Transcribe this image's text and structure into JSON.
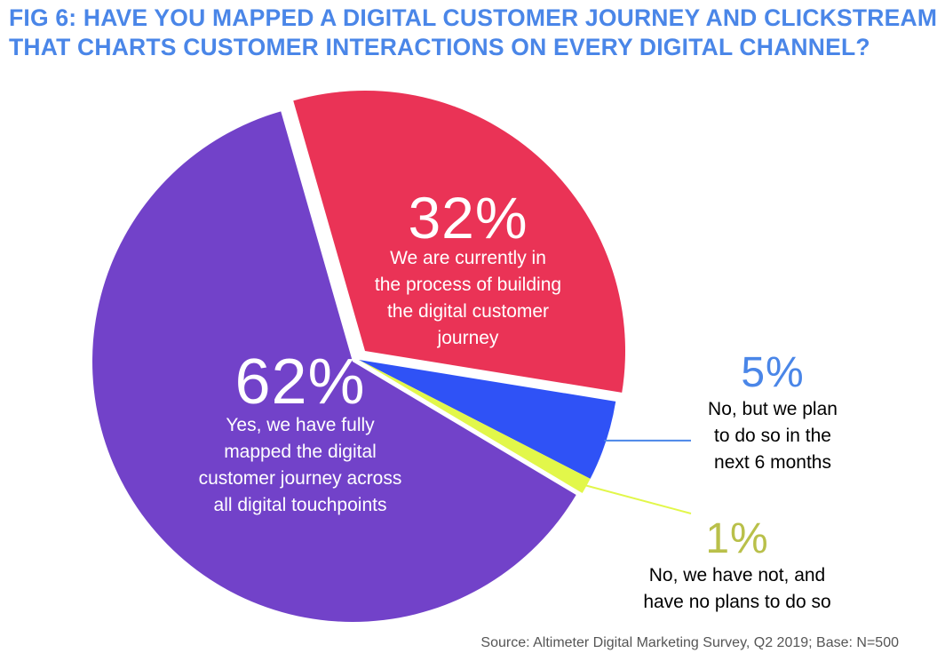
{
  "title": {
    "line1": "FIG 6: HAVE YOU MAPPED A DIGITAL CUSTOMER JOURNEY AND CLICKSTREAM",
    "line2": "THAT CHARTS CUSTOMER INTERACTIONS ON EVERY DIGITAL CHANNEL?"
  },
  "source": "Source: Altimeter Digital Marketing Survey, Q2 2019; Base: N=500",
  "colors": {
    "title": "#4a86e8",
    "yes_full": "#7242c9",
    "in_process": "#ea3356",
    "plan_6_months": "#2f52f6",
    "not_no_plans": "#e2f74a",
    "label_5pct": "#4a86e8",
    "label_1pct": "#b9c04a"
  },
  "chart_data": {
    "type": "pie",
    "title": "FIG 6: HAVE YOU MAPPED A DIGITAL CUSTOMER JOURNEY AND CLICKSTREAM THAT CHARTS CUSTOMER INTERACTIONS ON EVERY DIGITAL CHANNEL?",
    "slices": [
      {
        "value": 32,
        "pct_label": "32%",
        "label": "We are currently in the process of building the digital customer journey",
        "label_lines": [
          "We are currently in",
          "the process of building",
          "the digital customer",
          "journey"
        ],
        "color": "#ea3356"
      },
      {
        "value": 5,
        "pct_label": "5%",
        "label": "No, but we plan to do so in the next 6 months",
        "label_lines": [
          "No, but we plan",
          "to do so in the",
          "next 6 months"
        ],
        "color": "#2f52f6"
      },
      {
        "value": 1,
        "pct_label": "1%",
        "label": "No, we have not, and have no plans to do so",
        "label_lines": [
          "No, we have not, and",
          "have no plans to do so"
        ],
        "color": "#e2f74a"
      },
      {
        "value": 62,
        "pct_label": "62%",
        "label": "Yes, we have fully mapped the digital customer journey across all digital touchpoints",
        "label_lines": [
          "Yes, we have fully",
          "mapped the digital",
          "customer journey across",
          "all digital touchpoints"
        ],
        "color": "#7242c9"
      }
    ]
  }
}
